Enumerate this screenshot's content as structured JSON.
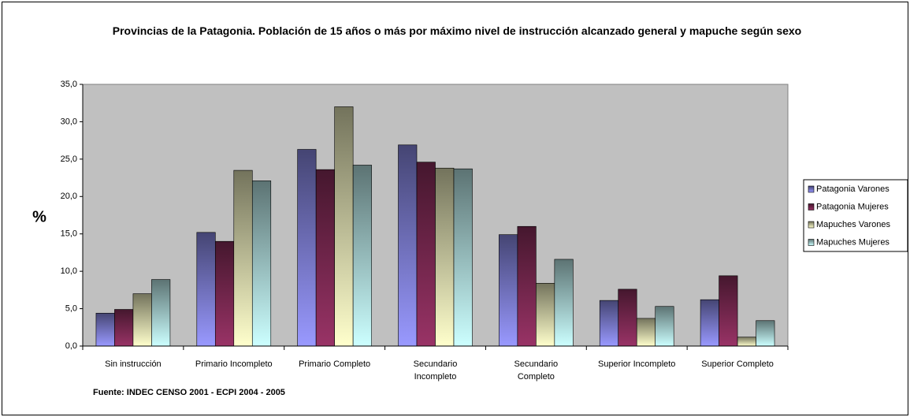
{
  "chart_data": {
    "type": "bar",
    "title": "Provincias de la Patagonia. Población de 15 años o más por máximo nivel de instrucción alcanzado general y mapuche según sexo",
    "ylabel": "%",
    "source": "Fuente: INDEC CENSO 2001 - ECPI 2004 - 2005",
    "categories": [
      "Sin instrucción",
      "Primario Incompleto",
      "Primario Completo",
      "Secundario Incompleto",
      "Secundario Completo",
      "Superior Incompleto",
      "Superior Completo"
    ],
    "series": [
      {
        "name": "Patagonia Varones",
        "color": "#9999ff",
        "values": [
          4.4,
          15.2,
          26.3,
          26.9,
          14.9,
          6.1,
          6.2
        ]
      },
      {
        "name": "Patagonia Mujeres",
        "color": "#993366",
        "values": [
          4.9,
          14.0,
          23.6,
          24.6,
          16.0,
          7.6,
          9.4
        ]
      },
      {
        "name": "Mapuches Varones",
        "color": "#ffffcc",
        "values": [
          7.0,
          23.5,
          32.0,
          23.8,
          8.4,
          3.7,
          1.2
        ]
      },
      {
        "name": "Mapuches Mujeres",
        "color": "#ccffff",
        "values": [
          8.9,
          22.1,
          24.2,
          23.7,
          11.6,
          5.3,
          3.4
        ]
      }
    ],
    "ylim": [
      0,
      35
    ],
    "yticks": [
      {
        "value": 0,
        "label": "0,0"
      },
      {
        "value": 5,
        "label": "5,0"
      },
      {
        "value": 10,
        "label": "10,0"
      },
      {
        "value": 15,
        "label": "15,0"
      },
      {
        "value": 20,
        "label": "20,0"
      },
      {
        "value": 25,
        "label": "25,0"
      },
      {
        "value": 30,
        "label": "30,0"
      },
      {
        "value": 35,
        "label": "35,0"
      }
    ],
    "grid": false,
    "legend": "right",
    "plot_background": "#c0c0c0"
  }
}
